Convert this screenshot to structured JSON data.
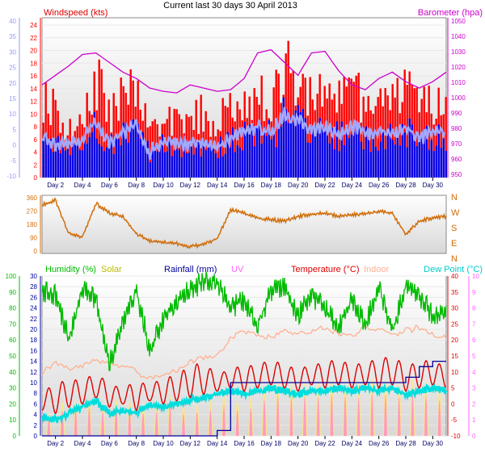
{
  "title": "Current last 30 days 30 April 2013",
  "day_labels": [
    "Day 2",
    "Day 4",
    "Day 6",
    "Day 8",
    "Day 10",
    "Day 12",
    "Day 14",
    "Day 16",
    "Day 18",
    "Day 20",
    "Day 22",
    "Day 24",
    "Day 26",
    "Day 28",
    "Day 30"
  ],
  "colors": {
    "wind": "#ff0000",
    "gust": "#0000ee",
    "avg": "#a0a8ff",
    "baro": "#cc00cc",
    "dir": "#d06d0a",
    "humidity": "#00bb00",
    "solar": "#bbbb00",
    "rain": "#000099",
    "uv": "#ff66ff",
    "temp": "#dd0000",
    "indoor": "#ffb090",
    "dew": "#00dddd",
    "left_axis": "#9999ff",
    "rain_axis": "#000099"
  },
  "chart_data": [
    {
      "type": "line",
      "name": "wind_baro",
      "left_title": "Windspeed (kts)",
      "right_title": "Barometer (hpa)",
      "left_ticks": [
        "24",
        "22",
        "20",
        "18",
        "16",
        "14",
        "12",
        "10",
        "8",
        "6",
        "4",
        "2",
        "0"
      ],
      "outer_left_ticks": [
        "40",
        "35",
        "30",
        "25",
        "20",
        "15",
        "10",
        "5",
        "0",
        "-5",
        "-10"
      ],
      "right_ticks": [
        "1050",
        "1040",
        "1030",
        "1020",
        "1010",
        "1000",
        "990",
        "980",
        "970",
        "960",
        "950"
      ],
      "ylim_left": [
        0,
        25
      ],
      "ylim_right": [
        950,
        1050
      ],
      "x": [
        0,
        1,
        2,
        3,
        4,
        5,
        6,
        7,
        8,
        9,
        10,
        11,
        12,
        13,
        14,
        15,
        16,
        17,
        18,
        19,
        20,
        21,
        22,
        23,
        24,
        25,
        26,
        27,
        28,
        29,
        30
      ],
      "series": [
        {
          "key": "gust_max",
          "values": [
            17,
            14,
            9,
            13,
            21,
            12,
            17,
            19,
            8,
            13,
            11,
            14,
            13,
            12,
            15,
            16,
            18,
            17,
            23,
            21,
            16,
            18,
            17,
            19,
            15,
            17,
            16,
            19,
            15,
            16,
            14
          ]
        },
        {
          "key": "wind_mean",
          "values": [
            9,
            8,
            6,
            7,
            12,
            7,
            9,
            10,
            5,
            7,
            6,
            7,
            7,
            6,
            8,
            9,
            10,
            9,
            13,
            12,
            9,
            10,
            9,
            11,
            8,
            9,
            9,
            10,
            8,
            9,
            8
          ]
        },
        {
          "key": "avg",
          "values": [
            6,
            5,
            5,
            6,
            9,
            5,
            7,
            8,
            4,
            6,
            5,
            5,
            6,
            5,
            6,
            7,
            8,
            7,
            10,
            9,
            7,
            8,
            7,
            8,
            7,
            7,
            7,
            8,
            6,
            7,
            7
          ]
        },
        {
          "key": "baro",
          "values": [
            1008,
            1014,
            1020,
            1027,
            1028,
            1022,
            1016,
            1012,
            1006,
            1004,
            1003,
            1008,
            1006,
            1004,
            1005,
            1012,
            1028,
            1030,
            1022,
            1014,
            1028,
            1029,
            1017,
            1008,
            1005,
            1012,
            1016,
            1010,
            1006,
            1010,
            1016
          ]
        }
      ]
    },
    {
      "type": "line",
      "name": "wind_direction",
      "ticks": [
        "360",
        "270",
        "180",
        "90",
        "0"
      ],
      "compass": [
        "N",
        "W",
        "S",
        "E",
        "N"
      ],
      "ylim": [
        0,
        360
      ],
      "x": [
        0,
        1,
        2,
        3,
        4,
        5,
        6,
        7,
        8,
        9,
        10,
        11,
        12,
        13,
        14,
        15,
        16,
        17,
        18,
        19,
        20,
        21,
        22,
        23,
        24,
        25,
        26,
        27,
        28,
        29,
        30
      ],
      "values": [
        300,
        330,
        120,
        100,
        310,
        250,
        230,
        120,
        80,
        70,
        60,
        40,
        60,
        90,
        270,
        250,
        220,
        210,
        200,
        230,
        240,
        250,
        230,
        240,
        245,
        260,
        250,
        120,
        200,
        220,
        230
      ]
    },
    {
      "type": "line",
      "name": "temp_humidity_rain",
      "titles": {
        "humidity": "Humidity (%)",
        "solar": "Solar",
        "rain": "Rainfall (mm)",
        "uv": "UV",
        "temp": "Temperature (°C)",
        "indoor": "Indoor",
        "dew": "Dew Point (°C)"
      },
      "hum_ticks": [
        "100",
        "90",
        "80",
        "70",
        "60",
        "50",
        "40",
        "30",
        "20",
        "10",
        "0"
      ],
      "rain_ticks": [
        "30",
        "28",
        "26",
        "24",
        "22",
        "20",
        "18",
        "16",
        "14",
        "12",
        "10",
        "8",
        "6",
        "4",
        "2",
        "0"
      ],
      "temp_ticks": [
        "40",
        "35",
        "30",
        "25",
        "20",
        "15",
        "10",
        "5",
        "0",
        "-5",
        "-10"
      ],
      "uv_ticks": [
        "10",
        "9",
        "8",
        "7",
        "6",
        "5",
        "4",
        "3",
        "2",
        "1",
        "0"
      ],
      "ylim_humidity": [
        0,
        100
      ],
      "ylim_temp": [
        -10,
        40
      ],
      "ylim_rain": [
        0,
        30
      ],
      "x": [
        0,
        1,
        2,
        3,
        4,
        5,
        6,
        7,
        8,
        9,
        10,
        11,
        12,
        13,
        14,
        15,
        16,
        17,
        18,
        19,
        20,
        21,
        22,
        23,
        24,
        25,
        26,
        27,
        28,
        29,
        30
      ],
      "series": [
        {
          "key": "humidity",
          "values": [
            90,
            88,
            60,
            92,
            85,
            45,
            70,
            90,
            55,
            72,
            85,
            92,
            96,
            97,
            80,
            85,
            70,
            90,
            93,
            75,
            88,
            80,
            68,
            85,
            70,
            92,
            65,
            95,
            88,
            75,
            80
          ]
        },
        {
          "key": "temp_max",
          "values": [
            4,
            6,
            8,
            7,
            10,
            6,
            5,
            7,
            6,
            8,
            9,
            12,
            13,
            9,
            11,
            12,
            12,
            14,
            12,
            11,
            12,
            13,
            14,
            12,
            13,
            14,
            15,
            12,
            13,
            14,
            11
          ]
        },
        {
          "key": "temp_min",
          "values": [
            -2,
            -3,
            -1,
            0,
            2,
            -1,
            0,
            -2,
            1,
            0,
            1,
            2,
            3,
            4,
            5,
            4,
            5,
            6,
            5,
            4,
            6,
            5,
            6,
            5,
            6,
            5,
            6,
            4,
            5,
            6,
            5
          ]
        },
        {
          "key": "dew",
          "values": [
            -4,
            -5,
            -3,
            -1,
            1,
            -3,
            -2,
            -3,
            0,
            -1,
            0,
            1,
            2,
            3,
            4,
            3,
            4,
            5,
            4,
            3,
            4,
            4,
            5,
            4,
            5,
            4,
            5,
            3,
            4,
            5,
            4
          ]
        },
        {
          "key": "indoor",
          "values": [
            9,
            12,
            10,
            11,
            13,
            12,
            11,
            10,
            9,
            10,
            11,
            14,
            15,
            16,
            20,
            22,
            21,
            20,
            22,
            21,
            22,
            24,
            23,
            22,
            25,
            24,
            22,
            24,
            23,
            21,
            20
          ]
        },
        {
          "key": "rain_total",
          "values": [
            0,
            0,
            0,
            0,
            0,
            0,
            0,
            0,
            0,
            0,
            0,
            0,
            0,
            1,
            10,
            10,
            10,
            10,
            10,
            10,
            10,
            10,
            10,
            10,
            10,
            10,
            10,
            11,
            13,
            14,
            14
          ]
        },
        {
          "key": "uv_peak",
          "values": [
            1,
            2,
            2,
            2,
            2,
            2,
            2,
            2,
            2,
            2,
            2,
            2,
            2,
            2,
            2,
            2,
            3,
            3,
            3,
            3,
            3,
            3,
            3,
            3,
            3,
            3,
            3,
            3,
            3,
            3,
            3
          ]
        }
      ]
    }
  ]
}
